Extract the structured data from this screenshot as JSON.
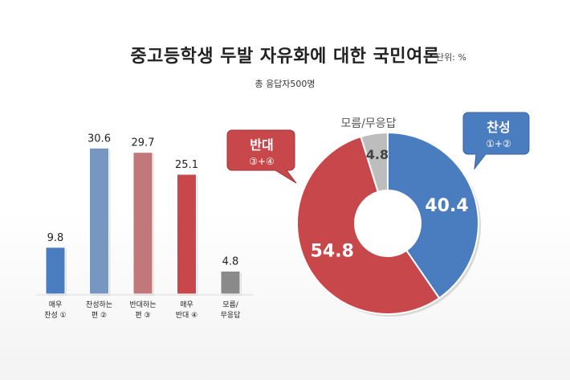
{
  "header": {
    "title": "중고등학생 두발 자유화에 대한 국민여론",
    "unit": "단위: %",
    "subtitle": "총 응답자500명"
  },
  "colors": {
    "support": "#4a7cc0",
    "support_light": "#7896c2",
    "oppose": "#c7474a",
    "oppose_light": "#c2777a",
    "unknown": "#8a8a8a",
    "unknown_light": "#bdbdbd"
  },
  "chart_data": [
    {
      "type": "bar",
      "categories": [
        "매우 찬성 ①",
        "찬성하는 편 ②",
        "반대하는 편 ③",
        "매우 반대 ④",
        "모름/ 무응답"
      ],
      "category_lines": [
        [
          "매우",
          "찬성 ①"
        ],
        [
          "찬성하는",
          "편 ②"
        ],
        [
          "반대하는",
          "편 ③"
        ],
        [
          "매우",
          "반대 ④"
        ],
        [
          "모름/",
          "무응답"
        ]
      ],
      "values": [
        9.8,
        30.6,
        29.7,
        25.1,
        4.8
      ],
      "value_labels": [
        "9.8",
        "30.6",
        "29.7",
        "25.1",
        "4.8"
      ],
      "colors": [
        "#4a7cc0",
        "#7896c2",
        "#c2777a",
        "#c7474a",
        "#8a8a8a"
      ],
      "ylim": [
        0,
        32
      ]
    },
    {
      "type": "pie",
      "donut": true,
      "slices": [
        {
          "label": "찬성",
          "sublabel": "①+②",
          "value": 40.4,
          "value_label": "40.4",
          "color": "#4a7cc0"
        },
        {
          "label": "반대",
          "sublabel": "③+④",
          "value": 54.8,
          "value_label": "54.8",
          "color": "#c7474a"
        },
        {
          "label": "모름/무응답",
          "value": 4.8,
          "value_label": "4.8",
          "color": "#bdbdbd"
        }
      ]
    }
  ]
}
